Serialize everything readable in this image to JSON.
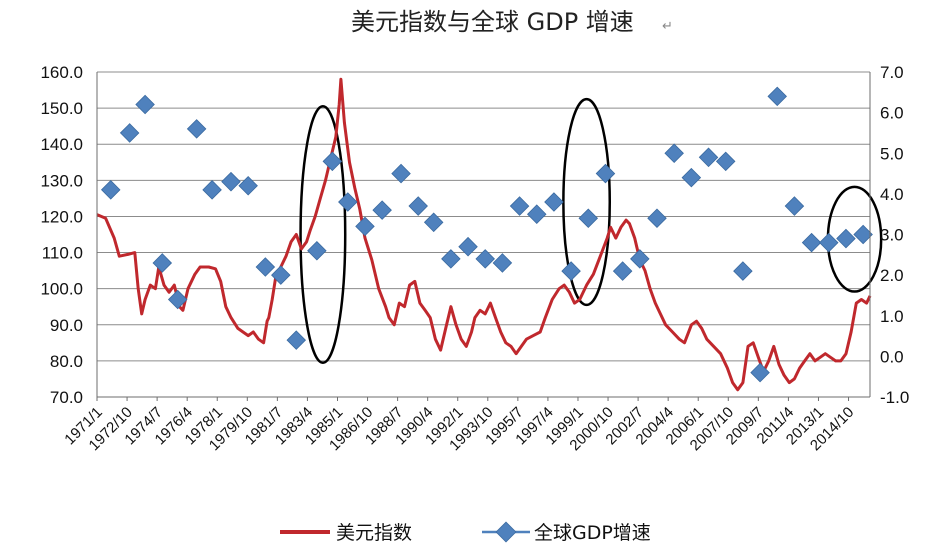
{
  "chart_data": {
    "type": "line",
    "title": "美元指数与全球 GDP 增速",
    "title_mark": "↵",
    "left_axis": {
      "ylim": [
        70,
        160
      ],
      "ticks": [
        "70.0",
        "80.0",
        "90.0",
        "100.0",
        "110.0",
        "120.0",
        "130.0",
        "140.0",
        "150.0",
        "160.0"
      ]
    },
    "right_axis": {
      "ylim": [
        -1,
        7
      ],
      "ticks": [
        "-1.0",
        "0.0",
        "1.0",
        "2.0",
        "3.0",
        "4.0",
        "5.0",
        "6.0",
        "7.0"
      ]
    },
    "x_axis": {
      "start": 1971.0,
      "end": 2016.0,
      "tick_labels": [
        "1971/1",
        "1972/10",
        "1974/7",
        "1976/4",
        "1978/1",
        "1979/10",
        "1981/7",
        "1983/4",
        "1985/1",
        "1986/10",
        "1988/7",
        "1990/4",
        "1992/1",
        "1993/10",
        "1995/7",
        "1997/4",
        "1999/1",
        "2000/10",
        "2002/7",
        "2004/4",
        "2006/1",
        "2007/10",
        "2009/7",
        "2011/4",
        "2013/1",
        "2014/10"
      ]
    },
    "grid": "horizontal",
    "legend_position": "bottom",
    "series": [
      {
        "name": "美元指数",
        "color": "#c0282d",
        "axis": "left",
        "kind": "line",
        "points": [
          [
            1971.0,
            120.5
          ],
          [
            1971.5,
            119.5
          ],
          [
            1972.0,
            114
          ],
          [
            1972.3,
            109
          ],
          [
            1972.8,
            109.5
          ],
          [
            1973.2,
            110
          ],
          [
            1973.4,
            100
          ],
          [
            1973.6,
            93
          ],
          [
            1973.8,
            97
          ],
          [
            1974.1,
            101
          ],
          [
            1974.4,
            100
          ],
          [
            1974.6,
            106
          ],
          [
            1974.9,
            101
          ],
          [
            1975.2,
            99
          ],
          [
            1975.5,
            101
          ],
          [
            1975.8,
            95
          ],
          [
            1976.0,
            94
          ],
          [
            1976.3,
            100
          ],
          [
            1976.7,
            104
          ],
          [
            1977.0,
            106
          ],
          [
            1977.5,
            106
          ],
          [
            1977.9,
            105.5
          ],
          [
            1978.2,
            102
          ],
          [
            1978.5,
            95
          ],
          [
            1978.8,
            92
          ],
          [
            1979.2,
            89
          ],
          [
            1979.5,
            88
          ],
          [
            1979.8,
            87
          ],
          [
            1980.1,
            88
          ],
          [
            1980.4,
            86
          ],
          [
            1980.7,
            85
          ],
          [
            1980.9,
            91
          ],
          [
            1981.0,
            92
          ],
          [
            1981.2,
            97
          ],
          [
            1981.4,
            103
          ],
          [
            1981.7,
            106
          ],
          [
            1982.0,
            109
          ],
          [
            1982.3,
            113
          ],
          [
            1982.6,
            115
          ],
          [
            1982.9,
            111
          ],
          [
            1983.2,
            113
          ],
          [
            1983.4,
            116
          ],
          [
            1983.7,
            120
          ],
          [
            1984.0,
            125
          ],
          [
            1984.3,
            130
          ],
          [
            1984.6,
            136
          ],
          [
            1984.9,
            142
          ],
          [
            1985.1,
            151
          ],
          [
            1985.2,
            158
          ],
          [
            1985.4,
            146
          ],
          [
            1985.7,
            135
          ],
          [
            1986.0,
            128
          ],
          [
            1986.3,
            122
          ],
          [
            1986.6,
            114
          ],
          [
            1987.0,
            108
          ],
          [
            1987.4,
            100
          ],
          [
            1987.8,
            95
          ],
          [
            1988.0,
            92
          ],
          [
            1988.3,
            90
          ],
          [
            1988.6,
            96
          ],
          [
            1988.9,
            95
          ],
          [
            1989.2,
            101
          ],
          [
            1989.5,
            102
          ],
          [
            1989.8,
            96
          ],
          [
            1990.1,
            94
          ],
          [
            1990.4,
            92
          ],
          [
            1990.7,
            86
          ],
          [
            1991.0,
            83
          ],
          [
            1991.3,
            89
          ],
          [
            1991.6,
            95
          ],
          [
            1991.9,
            90
          ],
          [
            1992.2,
            86
          ],
          [
            1992.5,
            84
          ],
          [
            1992.8,
            88
          ],
          [
            1993.0,
            92
          ],
          [
            1993.3,
            94
          ],
          [
            1993.6,
            93
          ],
          [
            1993.9,
            96
          ],
          [
            1994.2,
            92
          ],
          [
            1994.5,
            88
          ],
          [
            1994.8,
            85
          ],
          [
            1995.1,
            84
          ],
          [
            1995.4,
            82
          ],
          [
            1995.7,
            84
          ],
          [
            1996.0,
            86
          ],
          [
            1996.4,
            87
          ],
          [
            1996.8,
            88
          ],
          [
            1997.1,
            92
          ],
          [
            1997.5,
            97
          ],
          [
            1997.9,
            100
          ],
          [
            1998.2,
            101
          ],
          [
            1998.5,
            99
          ],
          [
            1998.8,
            96
          ],
          [
            1999.1,
            97
          ],
          [
            1999.5,
            101
          ],
          [
            1999.9,
            104
          ],
          [
            2000.3,
            109
          ],
          [
            2000.7,
            114
          ],
          [
            2000.9,
            117
          ],
          [
            2001.2,
            114
          ],
          [
            2001.5,
            117
          ],
          [
            2001.8,
            119
          ],
          [
            2002.0,
            118
          ],
          [
            2002.3,
            114
          ],
          [
            2002.6,
            108
          ],
          [
            2002.9,
            105
          ],
          [
            2003.2,
            100
          ],
          [
            2003.5,
            96
          ],
          [
            2003.8,
            93
          ],
          [
            2004.1,
            90
          ],
          [
            2004.5,
            88
          ],
          [
            2004.9,
            86
          ],
          [
            2005.2,
            85
          ],
          [
            2005.6,
            90
          ],
          [
            2005.9,
            91
          ],
          [
            2006.2,
            89
          ],
          [
            2006.5,
            86
          ],
          [
            2006.9,
            84
          ],
          [
            2007.3,
            82
          ],
          [
            2007.7,
            78
          ],
          [
            2008.0,
            74
          ],
          [
            2008.3,
            72
          ],
          [
            2008.6,
            74
          ],
          [
            2008.9,
            84
          ],
          [
            2009.2,
            85
          ],
          [
            2009.5,
            81
          ],
          [
            2009.8,
            77
          ],
          [
            2010.1,
            80
          ],
          [
            2010.4,
            84
          ],
          [
            2010.7,
            79
          ],
          [
            2011.0,
            76
          ],
          [
            2011.3,
            74
          ],
          [
            2011.6,
            75
          ],
          [
            2011.9,
            78
          ],
          [
            2012.2,
            80
          ],
          [
            2012.5,
            82
          ],
          [
            2012.8,
            80
          ],
          [
            2013.1,
            81
          ],
          [
            2013.4,
            82
          ],
          [
            2013.7,
            81
          ],
          [
            2014.0,
            80
          ],
          [
            2014.3,
            80
          ],
          [
            2014.6,
            82
          ],
          [
            2014.9,
            88
          ],
          [
            2015.2,
            96
          ],
          [
            2015.5,
            97
          ],
          [
            2015.8,
            96
          ],
          [
            2016.0,
            98
          ]
        ]
      },
      {
        "name": "全球GDP增速",
        "color": "#4f81bd",
        "axis": "right",
        "kind": "scatter",
        "points": [
          [
            1971.8,
            4.1
          ],
          [
            1972.9,
            5.5
          ],
          [
            1973.8,
            6.2
          ],
          [
            1974.8,
            2.3
          ],
          [
            1975.7,
            1.4
          ],
          [
            1976.8,
            5.6
          ],
          [
            1977.7,
            4.1
          ],
          [
            1978.8,
            4.3
          ],
          [
            1979.8,
            4.2
          ],
          [
            1980.8,
            2.2
          ],
          [
            1981.7,
            2.0
          ],
          [
            1982.6,
            0.4
          ],
          [
            1983.8,
            2.6
          ],
          [
            1984.7,
            4.8
          ],
          [
            1985.6,
            3.8
          ],
          [
            1986.6,
            3.2
          ],
          [
            1987.6,
            3.6
          ],
          [
            1988.7,
            4.5
          ],
          [
            1989.7,
            3.7
          ],
          [
            1990.6,
            3.3
          ],
          [
            1991.6,
            2.4
          ],
          [
            1992.6,
            2.7
          ],
          [
            1993.6,
            2.4
          ],
          [
            1994.6,
            2.3
          ],
          [
            1995.6,
            3.7
          ],
          [
            1996.6,
            3.5
          ],
          [
            1997.6,
            3.8
          ],
          [
            1998.6,
            2.1
          ],
          [
            1999.6,
            3.4
          ],
          [
            2000.6,
            4.5
          ],
          [
            2001.6,
            2.1
          ],
          [
            2002.6,
            2.4
          ],
          [
            2003.6,
            3.4
          ],
          [
            2004.6,
            5.0
          ],
          [
            2005.6,
            4.4
          ],
          [
            2006.6,
            4.9
          ],
          [
            2007.6,
            4.8
          ],
          [
            2008.6,
            2.1
          ],
          [
            2009.6,
            -0.4
          ],
          [
            2010.6,
            6.4
          ],
          [
            2011.6,
            3.7
          ],
          [
            2012.6,
            2.8
          ],
          [
            2013.6,
            2.8
          ],
          [
            2014.6,
            2.9
          ],
          [
            2015.6,
            3.0
          ]
        ]
      }
    ],
    "annotations": [
      {
        "type": "ellipse",
        "x": 1984.15,
        "y": 115,
        "rx": 1.3,
        "ry": 35.5,
        "axis": "left"
      },
      {
        "type": "ellipse",
        "x": 1999.5,
        "y": 124,
        "rx": 1.35,
        "ry": 28.5,
        "axis": "left"
      },
      {
        "type": "ellipse",
        "x": 2015.1,
        "y": 113.7,
        "rx": 1.55,
        "ry": 14.5,
        "axis": "left"
      }
    ]
  }
}
